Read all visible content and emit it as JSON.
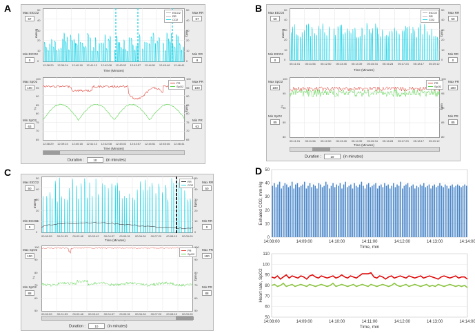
{
  "panels": {
    "A": {
      "letter": "A",
      "top": {
        "left_top": "Max EtCO2",
        "left_top_val": "67",
        "left_bot": "Min EtCO2",
        "left_bot_val": "0",
        "right_top": "Max RR",
        "right_top_val": "67",
        "right_bot": "Min RR",
        "right_bot_val": "8",
        "ylabel_left": "mmHg",
        "ylabel_right": "bpm",
        "yticks": [
          "50",
          "40",
          "30",
          "20",
          "10",
          "0"
        ],
        "yticks_right": [
          "50",
          "40",
          "30",
          "20",
          "10",
          "0"
        ],
        "xticks": [
          "12:38:29",
          "12:39:24",
          "12:40:18",
          "12:41:13",
          "12:42:08",
          "12:43:02",
          "12:43:57",
          "12:44:51",
          "12:45:46",
          "12:46:41"
        ],
        "xlabel": "Time (Minutes)",
        "legend": [
          "EtCO2",
          "RR",
          "CO2"
        ]
      },
      "bottom": {
        "left_top": "Max SpO2",
        "left_top_val": "100",
        "left_bot": "Min SpO2",
        "left_bot_val": "63",
        "right_top": "Max PR",
        "right_top_val": "100",
        "right_bot": "Min PR",
        "right_bot_val": "63",
        "ylabel_left": "%",
        "ylabel_right": "bpm",
        "yticks": [
          "100",
          "95",
          "90",
          "85",
          "80",
          "75",
          "70",
          "65"
        ],
        "yticks_right": [
          "100",
          "95",
          "90",
          "85",
          "80",
          "75",
          "70",
          "65"
        ],
        "xticks": [
          "12:38:29",
          "12:39:24",
          "12:40:18",
          "12:41:13",
          "12:42:08",
          "12:43:02",
          "12:43:57",
          "12:44:51",
          "12:45:46",
          "12:46:41"
        ],
        "xlabel": "Time (Minutes)",
        "legend": [
          "PR",
          "SpO2"
        ]
      },
      "duration_label": "Duration :",
      "duration_val": "10",
      "duration_unit": "(in minutes)"
    },
    "B": {
      "letter": "B",
      "top": {
        "left_top": "Max EtCO2",
        "left_top_val": "50",
        "left_bot": "Min EtCO2",
        "left_bot_val": "0",
        "right_top": "Max RR",
        "right_top_val": "50",
        "right_bot": "Min RR",
        "right_bot_val": "0",
        "ylabel_left": "mmHg",
        "ylabel_right": "bpm",
        "yticks": [
          "50",
          "40",
          "30",
          "20",
          "10",
          "0"
        ],
        "yticks_right": [
          "50",
          "40",
          "30",
          "20",
          "10",
          "0"
        ],
        "xticks": [
          "05:11:01",
          "05:11:56",
          "05:12:50",
          "05:13:45",
          "05:14:39",
          "05:15:34",
          "05:16:28",
          "05:17:23",
          "05:18:17",
          "05:19:12"
        ],
        "xlabel": "Time (Minutes)",
        "legend": [
          "EtCO2",
          "RR",
          "CO2"
        ]
      },
      "bottom": {
        "left_top": "Max SpO2",
        "left_top_val": "100",
        "left_bot": "Min SpO2",
        "left_bot_val": "85",
        "right_top": "Max PR",
        "right_top_val": "100",
        "right_bot": "Min PR",
        "right_bot_val": "85",
        "ylabel_left": "%",
        "ylabel_right": "bpm",
        "yticks": [
          "100",
          "95",
          "90",
          "85",
          "80"
        ],
        "yticks_right": [
          "100",
          "95",
          "90",
          "85",
          "80"
        ],
        "xticks": [
          "05:11:01",
          "05:11:56",
          "05:12:50",
          "05:13:45",
          "05:14:39",
          "05:15:34",
          "05:16:28",
          "05:17:23",
          "05:18:17",
          "05:19:12"
        ],
        "xlabel": "Time (Minutes)",
        "legend": [
          "PR",
          "SpO2"
        ]
      },
      "duration_label": "Duration :",
      "duration_val": "10",
      "duration_unit": "(in minutes)"
    },
    "C": {
      "letter": "C",
      "top": {
        "left_top": "Max EtCO2",
        "left_top_val": "50",
        "left_bot": "Min EtCO2",
        "left_bot_val": "5",
        "right_top": "Max RR",
        "right_top_val": "50",
        "right_bot": "Min RR",
        "right_bot_val": "0",
        "ylabel_left": "mmHg",
        "ylabel_right": "bpm",
        "yticks": [
          "50",
          "40",
          "30",
          "20",
          "10",
          "0"
        ],
        "yticks_right": [
          "50",
          "40",
          "30",
          "20",
          "10",
          "0"
        ],
        "xticks": [
          "00:00:59",
          "00:01:53",
          "00:02:48",
          "00:03:42",
          "00:04:37",
          "00:05:31",
          "00:06:26",
          "00:07:20",
          "00:08:15",
          "00:09:09"
        ],
        "xlabel": "Time (Minutes)",
        "legend": [
          "RR",
          "CO2"
        ]
      },
      "bottom": {
        "left_top": "Max SpO2",
        "left_top_val": "100",
        "left_bot": "Min SpO2",
        "left_bot_val": "88",
        "right_top": "Max PR",
        "right_top_val": "100",
        "right_bot": "Min PR",
        "right_bot_val": "88",
        "ylabel_left": "%",
        "ylabel_right": "bpm",
        "yticks": [
          "100",
          "90",
          "80",
          "70",
          "60",
          "50"
        ],
        "yticks_right": [
          "100",
          "90",
          "80",
          "70",
          "60",
          "50"
        ],
        "xticks": [
          "00:00:59",
          "00:01:53",
          "00:02:48",
          "00:03:42",
          "00:04:37",
          "00:05:31",
          "00:06:26",
          "00:07:20",
          "00:08:15",
          "00:09:09"
        ],
        "xlabel": "Time (Minutes)",
        "legend": [
          "PR",
          "SpO2"
        ]
      },
      "duration_label": "Duration :",
      "duration_val": "10",
      "duration_unit": "(in minutes)"
    },
    "D": {
      "letter": "D"
    }
  },
  "colors": {
    "cyan": "#22d3e6",
    "pr_red": "#e0463c",
    "spo2_green": "#58d44a",
    "d_bar": "#4a86c8",
    "d_red": "#e00d0d",
    "d_green": "#8ac43e"
  },
  "chart_data": [
    {
      "type": "bar",
      "panel": "D-top",
      "ylabel": "Exhaled CO2, mm Hg",
      "xlabel": "Time, min",
      "ylim": [
        0,
        50
      ],
      "yticks": [
        0,
        10,
        20,
        30,
        40,
        50
      ],
      "xticks": [
        "14:08:00",
        "14:09:00",
        "14:10:00",
        "14:11:00",
        "14:12:00",
        "14:13:00",
        "14:14:00"
      ],
      "grid": true,
      "values": [
        38,
        40,
        37,
        39,
        41,
        36,
        38,
        40,
        39,
        37,
        38,
        41,
        36,
        39,
        40,
        37,
        38,
        39,
        41,
        36,
        38,
        40,
        37,
        39,
        38,
        36,
        40,
        39,
        37,
        38,
        41,
        39,
        36,
        38,
        40,
        37,
        39,
        38,
        40,
        36,
        39,
        41,
        37,
        38,
        39,
        36,
        40,
        38,
        37,
        39,
        41,
        38,
        36,
        39,
        40,
        37,
        38,
        39,
        40,
        36,
        38,
        39,
        37,
        40,
        38,
        39,
        36,
        38,
        40,
        37,
        39,
        38,
        41,
        36,
        38,
        39,
        40,
        37,
        38,
        39,
        36,
        38,
        37,
        39,
        38,
        40,
        37,
        38,
        39,
        36,
        38,
        39,
        37,
        38,
        40,
        38,
        37,
        39,
        38,
        36,
        38,
        39,
        37,
        38,
        39,
        38,
        37,
        38,
        39,
        38
      ]
    },
    {
      "type": "line",
      "panel": "D-bottom",
      "ylabel": "Heart rate, SpO2",
      "xlabel": "Time, min",
      "ylim": [
        50,
        110
      ],
      "yticks": [
        50,
        60,
        70,
        80,
        90,
        100,
        110
      ],
      "xticks": [
        "14:08:00",
        "14:09:00",
        "14:10:00",
        "14:11:00",
        "14:12:00",
        "14:13:00",
        "14:14:00"
      ],
      "grid": true,
      "series": [
        {
          "values": [
            88,
            87,
            89,
            86,
            88,
            90,
            87,
            89,
            88,
            87,
            89,
            88,
            86,
            89,
            90,
            88,
            87,
            89,
            88,
            87,
            88,
            89,
            87,
            88,
            90,
            88,
            87,
            89,
            88,
            87,
            89,
            91,
            91,
            91,
            92,
            88,
            87,
            89,
            88,
            86,
            88,
            89,
            87,
            88,
            89,
            88,
            87,
            89,
            88,
            87,
            88,
            89,
            87,
            88,
            89,
            88,
            87,
            86,
            88,
            89,
            88,
            87,
            88,
            89,
            87,
            88,
            88,
            86
          ]
        },
        {
          "values": [
            80,
            81,
            79,
            80,
            82,
            79,
            80,
            81,
            79,
            80,
            81,
            80,
            79,
            81,
            80,
            79,
            80,
            81,
            80,
            79,
            80,
            82,
            79,
            80,
            81,
            80,
            79,
            80,
            81,
            79,
            80,
            81,
            80,
            79,
            81,
            80,
            79,
            80,
            81,
            80,
            79,
            80,
            82,
            80,
            79,
            80,
            81,
            79,
            80,
            81,
            80,
            79,
            80,
            81,
            79,
            80,
            79,
            81,
            80,
            79,
            80,
            81,
            80,
            79,
            80,
            79,
            80,
            78
          ]
        }
      ]
    }
  ]
}
